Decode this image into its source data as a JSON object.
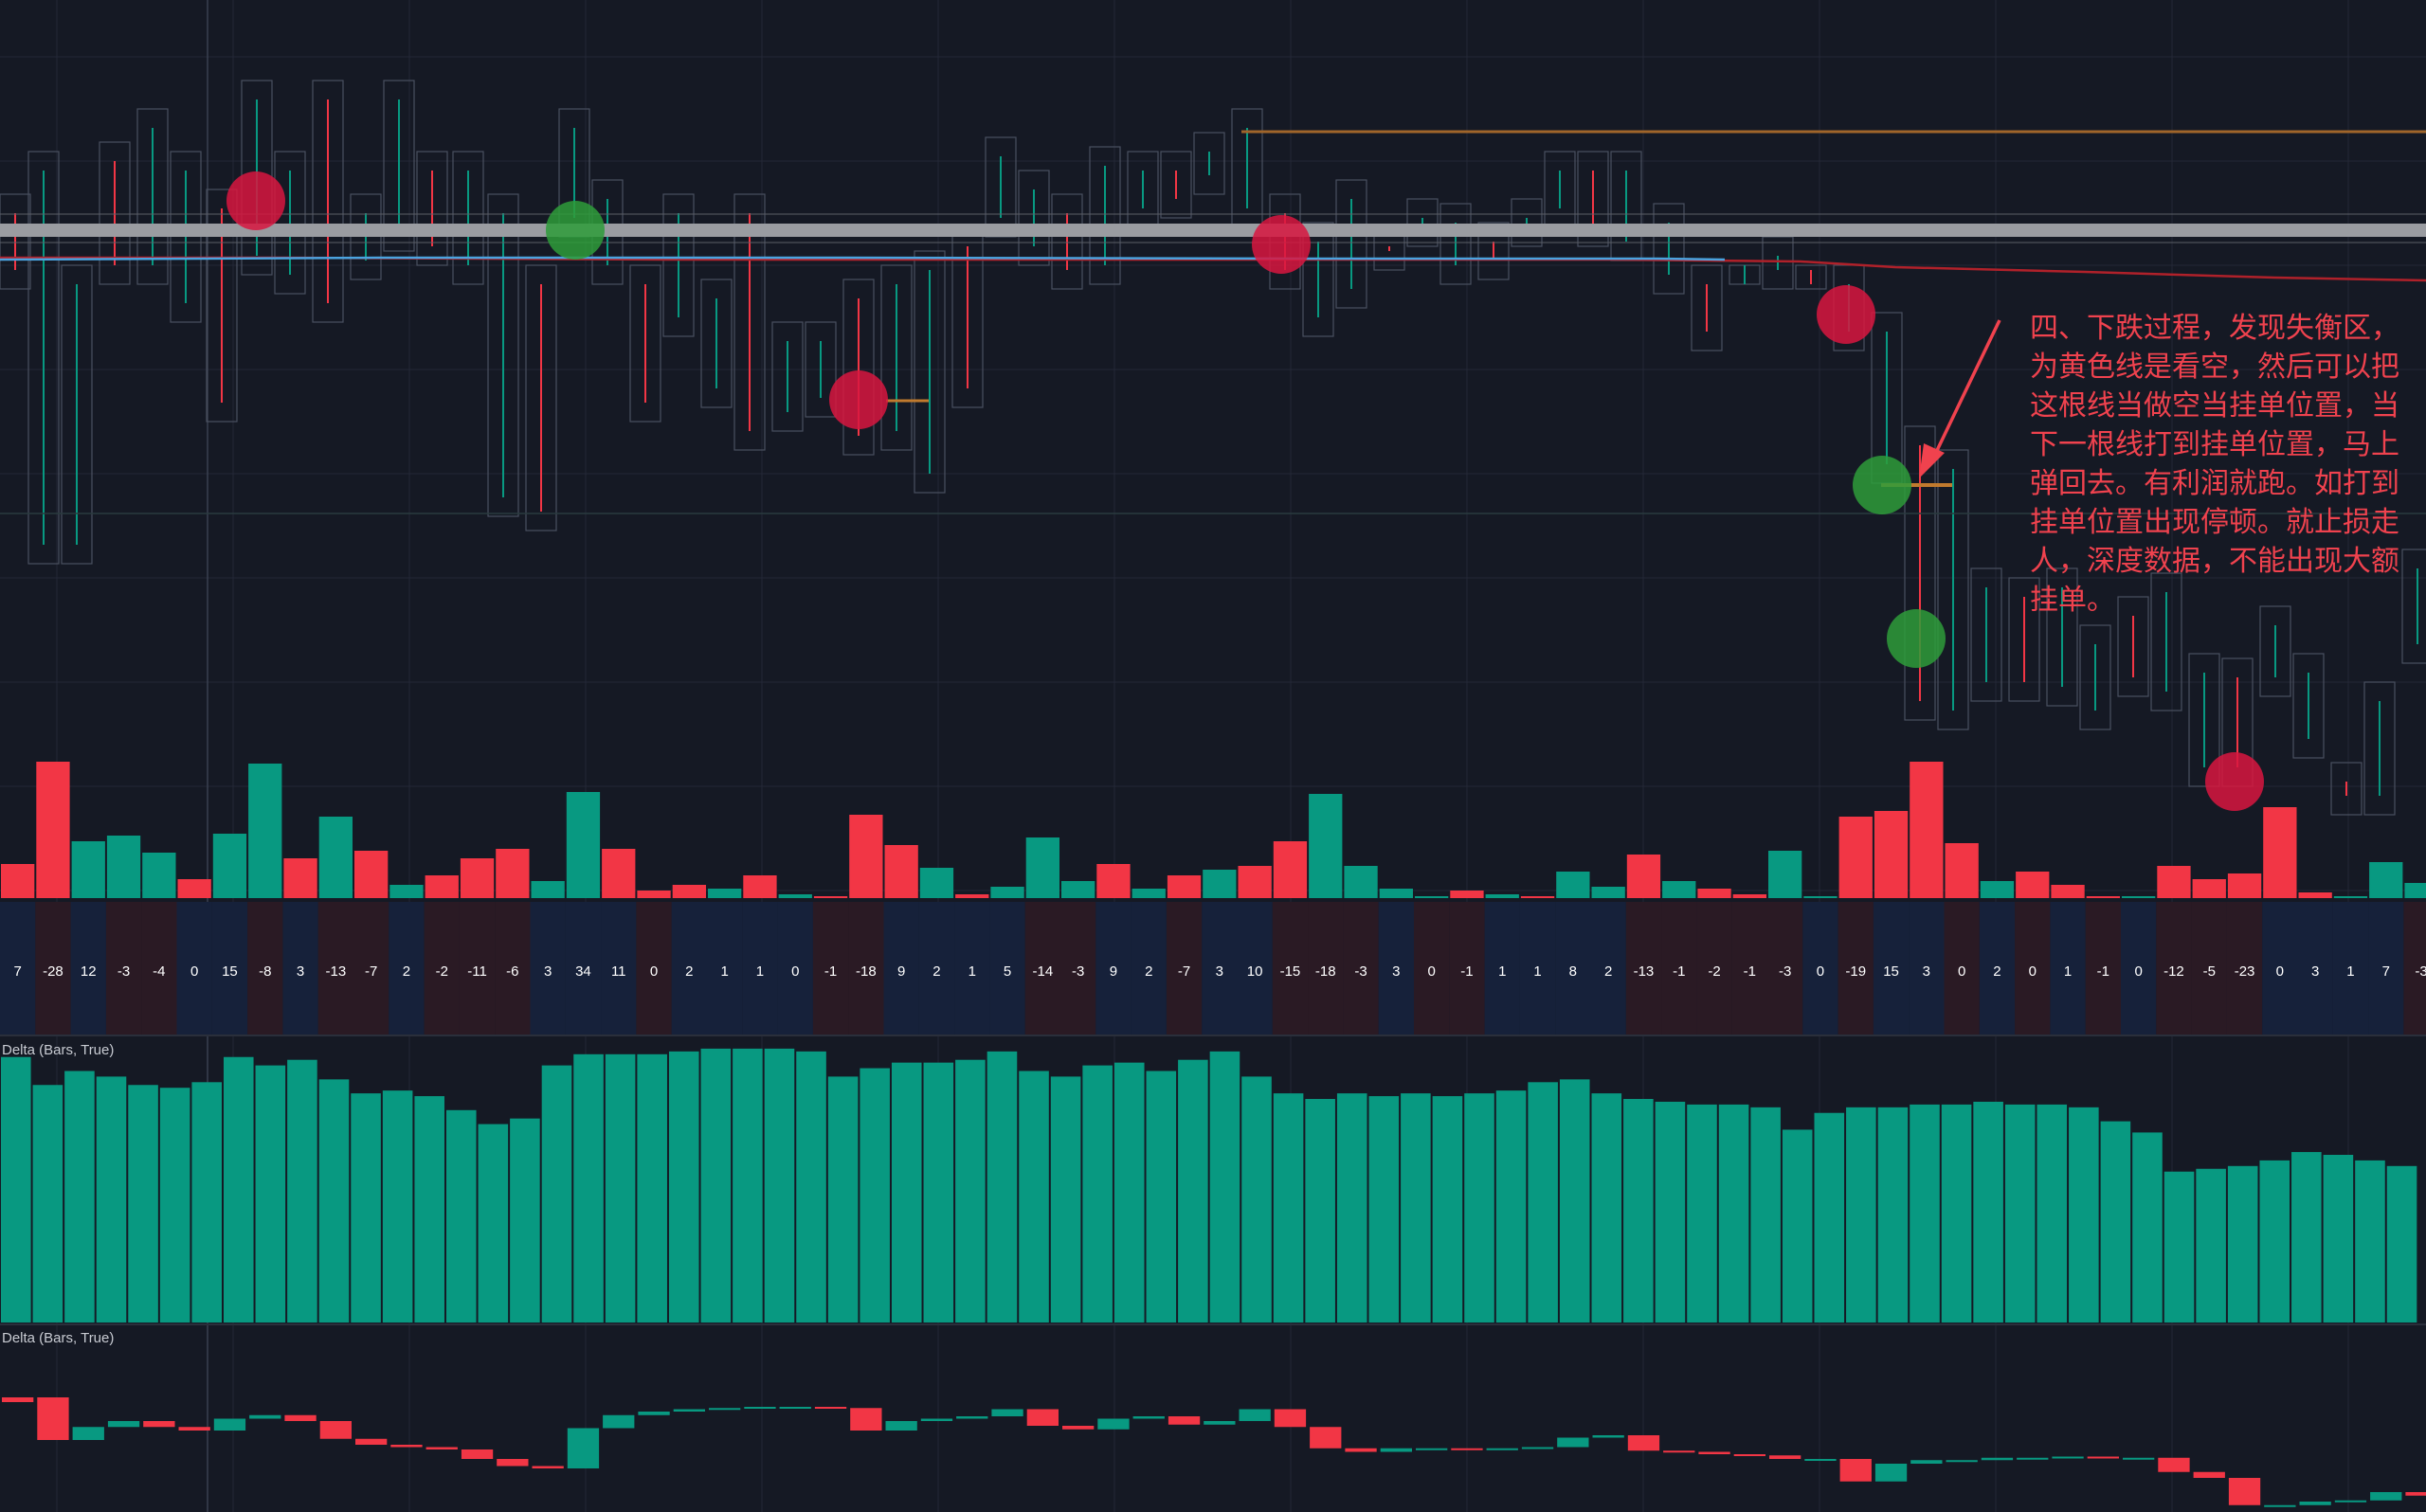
{
  "annotation": "四、下跌过程，发现失衡区，为黄色线是看空，然后可以把这根线当做空当挂单位置，当下一根线打到挂单位置，马上弹回去。有利润就跑。如打到挂单位置出现停顿。就止损走人，深度数据，不能出现大额挂单。",
  "panes": {
    "delta_pane_1_title": "Delta (Bars, True)",
    "delta_pane_2_title": "Delta (Bars, True)"
  },
  "colors": {
    "background": "#151924",
    "grid": "#232836",
    "up": "#089981",
    "down": "#f23645",
    "green_marker": "#2e9c3a",
    "red_marker": "#d8163f",
    "gray_band": "#9a9ca1",
    "ema_line": "#4aa3df",
    "ma_line": "#b0212a",
    "orange_level": "#a0652a",
    "arrow": "#f0424e",
    "row_blue": "#16213a",
    "row_red": "#2a1a24",
    "label_text": "#ffffff"
  },
  "chart_data": [
    {
      "type": "bar",
      "title": "volume",
      "values": [
        {
          "v": 18,
          "c": "down"
        },
        {
          "v": 72,
          "c": "down"
        },
        {
          "v": 30,
          "c": "up"
        },
        {
          "v": 33,
          "c": "up"
        },
        {
          "v": 24,
          "c": "up"
        },
        {
          "v": 10,
          "c": "down"
        },
        {
          "v": 34,
          "c": "up"
        },
        {
          "v": 71,
          "c": "up"
        },
        {
          "v": 21,
          "c": "down"
        },
        {
          "v": 43,
          "c": "up"
        },
        {
          "v": 25,
          "c": "down"
        },
        {
          "v": 7,
          "c": "up"
        },
        {
          "v": 12,
          "c": "down"
        },
        {
          "v": 21,
          "c": "down"
        },
        {
          "v": 26,
          "c": "down"
        },
        {
          "v": 9,
          "c": "up"
        },
        {
          "v": 56,
          "c": "up"
        },
        {
          "v": 26,
          "c": "down"
        },
        {
          "v": 4,
          "c": "down"
        },
        {
          "v": 7,
          "c": "down"
        },
        {
          "v": 5,
          "c": "up"
        },
        {
          "v": 12,
          "c": "down"
        },
        {
          "v": 2,
          "c": "up"
        },
        {
          "v": 1,
          "c": "down"
        },
        {
          "v": 44,
          "c": "down"
        },
        {
          "v": 28,
          "c": "down"
        },
        {
          "v": 16,
          "c": "up"
        },
        {
          "v": 2,
          "c": "down"
        },
        {
          "v": 6,
          "c": "up"
        },
        {
          "v": 32,
          "c": "up"
        },
        {
          "v": 9,
          "c": "up"
        },
        {
          "v": 18,
          "c": "down"
        },
        {
          "v": 5,
          "c": "up"
        },
        {
          "v": 12,
          "c": "down"
        },
        {
          "v": 15,
          "c": "up"
        },
        {
          "v": 17,
          "c": "down"
        },
        {
          "v": 30,
          "c": "down"
        },
        {
          "v": 55,
          "c": "up"
        },
        {
          "v": 17,
          "c": "up"
        },
        {
          "v": 5,
          "c": "up"
        },
        {
          "v": 1,
          "c": "up"
        },
        {
          "v": 4,
          "c": "down"
        },
        {
          "v": 2,
          "c": "up"
        },
        {
          "v": 1,
          "c": "down"
        },
        {
          "v": 14,
          "c": "up"
        },
        {
          "v": 6,
          "c": "up"
        },
        {
          "v": 23,
          "c": "down"
        },
        {
          "v": 9,
          "c": "up"
        },
        {
          "v": 5,
          "c": "down"
        },
        {
          "v": 2,
          "c": "down"
        },
        {
          "v": 25,
          "c": "up"
        },
        {
          "v": 0,
          "c": "up"
        },
        {
          "v": 43,
          "c": "down"
        },
        {
          "v": 46,
          "c": "down"
        },
        {
          "v": 72,
          "c": "down"
        },
        {
          "v": 29,
          "c": "down"
        },
        {
          "v": 9,
          "c": "up"
        },
        {
          "v": 14,
          "c": "down"
        },
        {
          "v": 7,
          "c": "down"
        },
        {
          "v": 1,
          "c": "down"
        },
        {
          "v": 0,
          "c": "up"
        },
        {
          "v": 17,
          "c": "down"
        },
        {
          "v": 10,
          "c": "down"
        },
        {
          "v": 13,
          "c": "down"
        },
        {
          "v": 48,
          "c": "down"
        },
        {
          "v": 3,
          "c": "down"
        },
        {
          "v": 1,
          "c": "up"
        },
        {
          "v": 19,
          "c": "up"
        },
        {
          "v": 8,
          "c": "up"
        },
        {
          "v": 10,
          "c": "up"
        },
        {
          "v": 10,
          "c": "up"
        }
      ]
    },
    {
      "type": "table",
      "title": "delta row",
      "values": [
        "7",
        "-28",
        "12",
        "-3",
        "-4",
        "0",
        "15",
        "-8",
        "3",
        "-13",
        "-7",
        "2",
        "-2",
        "-11",
        "-6",
        "3",
        "34",
        "11",
        "0",
        "2",
        "1",
        "1",
        "0",
        "-1",
        "-18",
        "9",
        "2",
        "1",
        "5",
        "-14",
        "-3",
        "9",
        "2",
        "-7",
        "3",
        "10",
        "-15",
        "-18",
        "-3",
        "3",
        "0",
        "-1",
        "1",
        "1",
        "8",
        "2",
        "-13",
        "-1",
        "-2",
        "-1",
        "-3",
        "0",
        "-19",
        "15",
        "3",
        "0",
        "2",
        "0",
        "1",
        "-1",
        "0",
        "-12",
        "-5",
        "-23",
        "0",
        "3",
        "1",
        "7",
        "-3"
      ],
      "row_colors": [
        "b",
        "r",
        "b",
        "r",
        "r",
        "b",
        "b",
        "r",
        "b",
        "r",
        "r",
        "b",
        "r",
        "r",
        "r",
        "b",
        "b",
        "b",
        "r",
        "b",
        "b",
        "b",
        "b",
        "r",
        "r",
        "b",
        "b",
        "b",
        "b",
        "r",
        "r",
        "b",
        "b",
        "r",
        "b",
        "b",
        "r",
        "r",
        "r",
        "b",
        "r",
        "r",
        "b",
        "b",
        "b",
        "b",
        "r",
        "r",
        "r",
        "r",
        "r",
        "b",
        "r",
        "b",
        "b",
        "r",
        "b",
        "r",
        "b",
        "r",
        "b",
        "r",
        "r",
        "r",
        "b",
        "b",
        "b",
        "b",
        "r"
      ]
    },
    {
      "type": "bar",
      "title": "Delta (Bars, True)",
      "values": [
        95,
        85,
        90,
        88,
        85,
        84,
        86,
        95,
        92,
        94,
        87,
        82,
        83,
        81,
        76,
        71,
        73,
        92,
        96,
        96,
        96,
        97,
        98,
        98,
        98,
        97,
        88,
        91,
        93,
        93,
        94,
        97,
        90,
        88,
        92,
        93,
        90,
        94,
        97,
        88,
        82,
        80,
        82,
        81,
        82,
        81,
        82,
        83,
        86,
        87,
        82,
        80,
        79,
        78,
        78,
        77,
        69,
        75,
        77,
        77,
        78,
        78,
        79,
        78,
        78,
        77,
        72,
        68,
        54,
        55,
        56,
        58,
        61,
        60,
        58,
        56
      ]
    },
    {
      "type": "bar",
      "title": "Delta (Bars, True) 2",
      "values": [
        {
          "o": 0,
          "c": -4
        },
        {
          "o": 0,
          "c": -36
        },
        {
          "o": -36,
          "c": -25
        },
        {
          "o": -25,
          "c": -20
        },
        {
          "o": -20,
          "c": -25
        },
        {
          "o": -25,
          "c": -28
        },
        {
          "o": -28,
          "c": -18
        },
        {
          "o": -18,
          "c": -15
        },
        {
          "o": -15,
          "c": -20
        },
        {
          "o": -20,
          "c": -35
        },
        {
          "o": -35,
          "c": -40
        },
        {
          "o": -40,
          "c": -42
        },
        {
          "o": -42,
          "c": -44
        },
        {
          "o": -44,
          "c": -52
        },
        {
          "o": -52,
          "c": -58
        },
        {
          "o": -58,
          "c": -60
        },
        {
          "o": -60,
          "c": -26
        },
        {
          "o": -26,
          "c": -15
        },
        {
          "o": -15,
          "c": -12
        },
        {
          "o": -12,
          "c": -10
        },
        {
          "o": -10,
          "c": -9
        },
        {
          "o": -9,
          "c": -8
        },
        {
          "o": -8,
          "c": -8
        },
        {
          "o": -8,
          "c": -9
        },
        {
          "o": -9,
          "c": -28
        },
        {
          "o": -28,
          "c": -20
        },
        {
          "o": -20,
          "c": -18
        },
        {
          "o": -18,
          "c": -16
        },
        {
          "o": -16,
          "c": -10
        },
        {
          "o": -10,
          "c": -24
        },
        {
          "o": -24,
          "c": -27
        },
        {
          "o": -27,
          "c": -18
        },
        {
          "o": -18,
          "c": -16
        },
        {
          "o": -16,
          "c": -23
        },
        {
          "o": -23,
          "c": -20
        },
        {
          "o": -20,
          "c": -10
        },
        {
          "o": -10,
          "c": -25
        },
        {
          "o": -25,
          "c": -43
        },
        {
          "o": -43,
          "c": -46
        },
        {
          "o": -46,
          "c": -43
        },
        {
          "o": -43,
          "c": -43
        },
        {
          "o": -43,
          "c": -44
        },
        {
          "o": -44,
          "c": -43
        },
        {
          "o": -43,
          "c": -42
        },
        {
          "o": -42,
          "c": -34
        },
        {
          "o": -34,
          "c": -32
        },
        {
          "o": -32,
          "c": -45
        },
        {
          "o": -45,
          "c": -46
        },
        {
          "o": -46,
          "c": -48
        },
        {
          "o": -48,
          "c": -49
        },
        {
          "o": -49,
          "c": -52
        },
        {
          "o": -52,
          "c": -52
        },
        {
          "o": -52,
          "c": -71
        },
        {
          "o": -71,
          "c": -56
        },
        {
          "o": -56,
          "c": -53
        },
        {
          "o": -53,
          "c": -53
        },
        {
          "o": -53,
          "c": -51
        },
        {
          "o": -51,
          "c": -51
        },
        {
          "o": -51,
          "c": -50
        },
        {
          "o": -50,
          "c": -51
        },
        {
          "o": -51,
          "c": -51
        },
        {
          "o": -51,
          "c": -63
        },
        {
          "o": -63,
          "c": -68
        },
        {
          "o": -68,
          "c": -91
        },
        {
          "o": -91,
          "c": -91
        },
        {
          "o": -91,
          "c": -88
        },
        {
          "o": -88,
          "c": -87
        },
        {
          "o": -87,
          "c": -80
        },
        {
          "o": -80,
          "c": -83
        }
      ]
    }
  ]
}
